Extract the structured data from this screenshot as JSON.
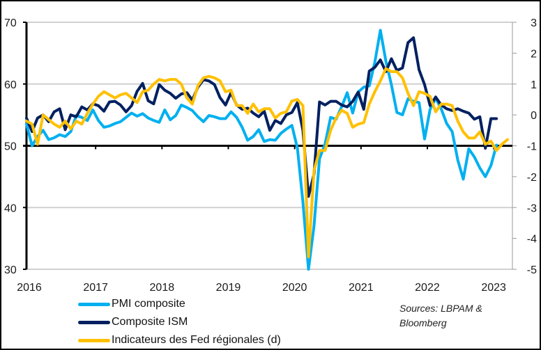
{
  "chart_data": {
    "type": "line",
    "title": "",
    "xlabel": "",
    "ylabel": "",
    "y2label": "",
    "x_start": "2016-01",
    "x_frequency": "monthly",
    "x_ticks": [
      "2016",
      "2017",
      "2018",
      "2019",
      "2020",
      "2021",
      "2022",
      "2023"
    ],
    "ylim": [
      30,
      70
    ],
    "y_ticks": [
      30,
      40,
      50,
      60,
      70
    ],
    "y2lim": [
      -5,
      3
    ],
    "y2_ticks": [
      -5,
      -4,
      -3,
      -2,
      -1,
      0,
      1,
      2,
      3
    ],
    "reference_line": {
      "axis": "left",
      "value": 50
    },
    "grid": true,
    "legend_position": "bottom-left",
    "series": [
      {
        "name": "PMI composite",
        "axis": "left",
        "color": "#00b0f0",
        "values": [
          53.5,
          50.0,
          51.5,
          52.5,
          51.0,
          51.3,
          51.8,
          51.5,
          52.3,
          54.9,
          54.6,
          54.1,
          55.8,
          54.1,
          53.0,
          53.2,
          53.6,
          53.9,
          54.6,
          55.3,
          54.8,
          55.2,
          54.5,
          54.1,
          53.8,
          55.8,
          54.2,
          54.9,
          56.6,
          56.2,
          55.7,
          54.7,
          53.9,
          54.9,
          54.7,
          54.4,
          54.4,
          55.5,
          54.6,
          53.0,
          50.9,
          51.5,
          52.6,
          50.7,
          51.0,
          50.9,
          52.0,
          52.7,
          53.3,
          49.6,
          40.9,
          30.0,
          37.0,
          47.9,
          50.3,
          54.6,
          54.3,
          56.3,
          58.6,
          55.3,
          58.7,
          59.5,
          59.7,
          63.5,
          68.7,
          63.7,
          59.9,
          55.4,
          55.0,
          57.6,
          57.2,
          57.0,
          51.1,
          55.9,
          57.7,
          56.0,
          53.6,
          52.3,
          47.7,
          44.6,
          49.5,
          48.2,
          46.4,
          45.0,
          46.8,
          50.1
        ]
      },
      {
        "name": "Composite ISM",
        "axis": "left",
        "color": "#002060",
        "values": [
          54.5,
          52.3,
          54.5,
          55.0,
          53.9,
          55.5,
          56.0,
          52.6,
          55.0,
          54.7,
          56.3,
          55.8,
          56.8,
          56.5,
          55.6,
          57.1,
          57.2,
          56.6,
          55.5,
          56.5,
          58.8,
          60.1,
          57.3,
          56.8,
          59.9,
          59.0,
          58.5,
          57.7,
          58.4,
          58.6,
          57.4,
          59.5,
          60.7,
          60.5,
          59.9,
          57.8,
          56.6,
          58.6,
          56.6,
          55.9,
          56.1,
          55.3,
          54.7,
          55.6,
          52.5,
          54.1,
          53.6,
          55.0,
          55.4,
          57.0,
          52.5,
          41.8,
          45.4,
          57.1,
          56.6,
          57.2,
          57.2,
          56.6,
          56.3,
          57.2,
          58.7,
          55.9,
          62.1,
          62.7,
          63.9,
          62.0,
          64.1,
          62.2,
          62.6,
          66.7,
          67.5,
          62.3,
          59.9,
          56.5,
          57.9,
          56.6,
          56.0,
          55.7,
          56.0,
          55.6,
          55.3,
          54.3,
          54.7,
          49.6,
          54.4,
          54.4
        ]
      },
      {
        "name": "Indicateurs des Fed régionales (d)",
        "axis": "right",
        "color": "#ffc000",
        "values": [
          -0.2,
          -0.3,
          -0.95,
          0.0,
          -0.15,
          -0.3,
          -0.4,
          -0.2,
          -0.45,
          -0.2,
          -0.3,
          0.05,
          0.35,
          0.6,
          0.75,
          0.65,
          0.55,
          0.65,
          0.7,
          0.55,
          0.4,
          0.75,
          0.8,
          1.0,
          1.15,
          1.1,
          1.15,
          1.15,
          1.0,
          0.55,
          0.35,
          0.95,
          1.2,
          1.25,
          1.2,
          1.1,
          0.75,
          0.8,
          0.3,
          0.3,
          0.05,
          0.35,
          0.1,
          0.2,
          0.2,
          -0.1,
          0.05,
          0.1,
          0.45,
          0.5,
          0.3,
          -4.6,
          -1.8,
          -1.15,
          -1.15,
          -0.5,
          -0.1,
          0.15,
          0.05,
          -0.4,
          -0.3,
          -0.25,
          0.35,
          0.75,
          1.1,
          1.5,
          1.4,
          1.4,
          1.2,
          0.7,
          0.3,
          0.75,
          0.7,
          0.6,
          0.1,
          0.35,
          0.35,
          0.3,
          -0.2,
          -0.55,
          -0.75,
          -0.75,
          -0.55,
          -0.95,
          -0.85,
          -1.15,
          -0.95,
          -0.8
        ]
      }
    ]
  },
  "legend": [
    {
      "label": "PMI composite",
      "color": "#00b0f0"
    },
    {
      "label": "Composite ISM",
      "color": "#002060"
    },
    {
      "label": "Indicateurs des Fed régionales (d)",
      "color": "#ffc000"
    }
  ],
  "source": {
    "line1": "Sources: LBPAM &",
    "line2": "Bloomberg"
  }
}
